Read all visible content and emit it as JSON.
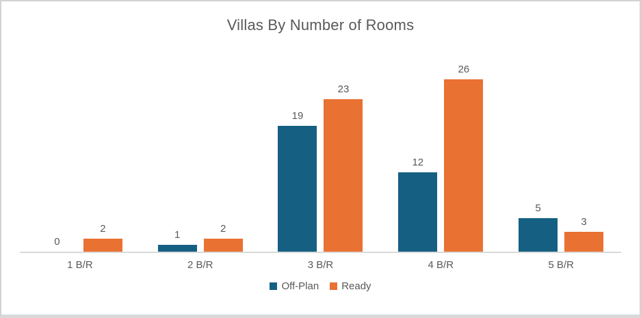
{
  "chart_data": {
    "type": "bar",
    "title": "Villas By Number of Rooms",
    "categories": [
      "1 B/R",
      "2 B/R",
      "3 B/R",
      "4 B/R",
      "5 B/R"
    ],
    "series": [
      {
        "name": "Off-Plan",
        "color": "#156082",
        "values": [
          0,
          1,
          19,
          12,
          5
        ]
      },
      {
        "name": "Ready",
        "color": "#E97132",
        "values": [
          2,
          2,
          23,
          26,
          3
        ]
      }
    ],
    "data_labels": true,
    "grid": false,
    "y_axis_visible": false,
    "ylim": [
      0,
      27
    ],
    "legend_position": "bottom",
    "colors": {
      "title_text": "#595959",
      "label_text": "#595959",
      "axis_line": "#d9d9d9",
      "frame_border": "#d2d2d2"
    }
  }
}
